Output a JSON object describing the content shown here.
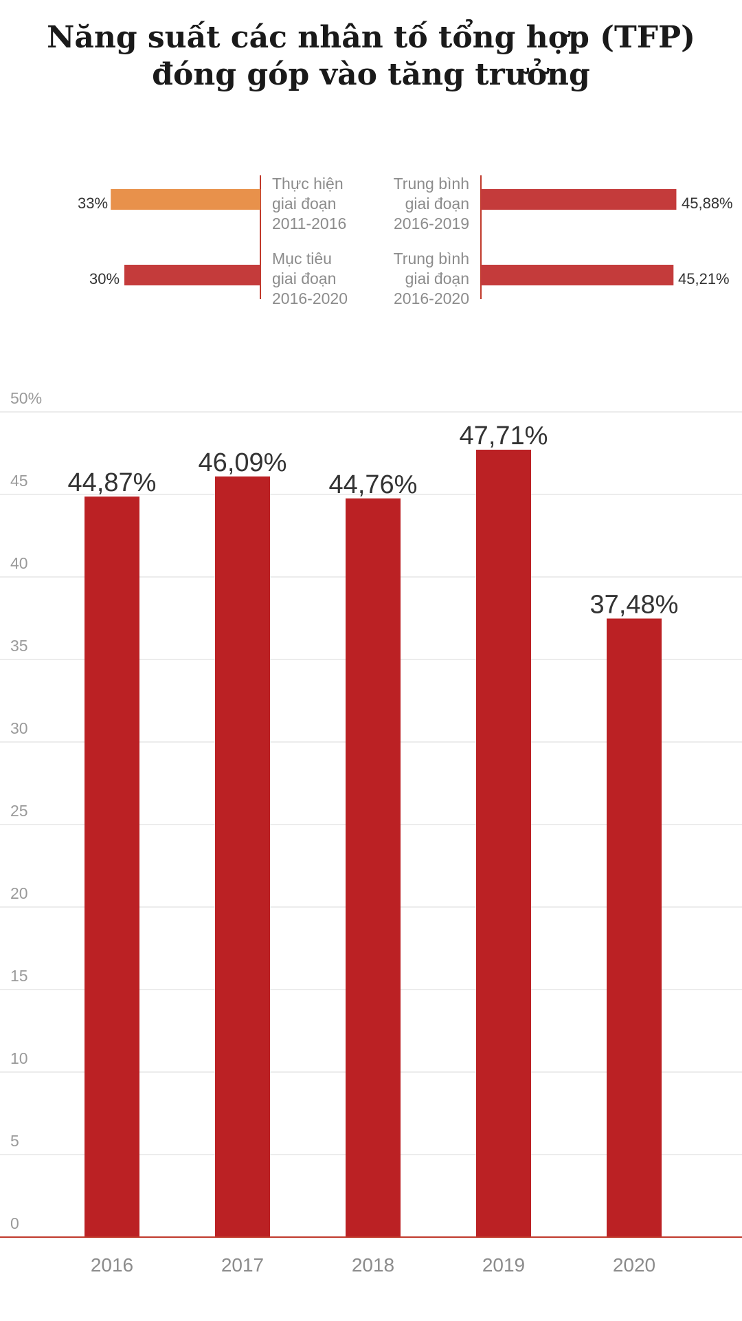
{
  "title": {
    "line1": "Năng suất các nhân tố tổng hợp (TFP)",
    "line2": "đóng góp vào tăng trưởng"
  },
  "comparison": {
    "left_color": "#e8914b",
    "bar_color": "#c43b3b",
    "rows": [
      {
        "left": {
          "label": [
            "Thực hiện",
            "giai đoạn",
            "2011-2016"
          ],
          "value_text": "33%",
          "value": 33,
          "color": "#e8914b"
        },
        "right": {
          "label": [
            "Trung bình",
            "giai đoạn",
            "2016-2019"
          ],
          "value_text": "45,88%",
          "value": 45.88,
          "color": "#c43b3b"
        }
      },
      {
        "left": {
          "label": [
            "Mục tiêu",
            "giai đoạn",
            "2016-2020"
          ],
          "value_text": "30%",
          "value": 30,
          "color": "#c43b3b"
        },
        "right": {
          "label": [
            "Trung bình",
            "giai đoạn",
            "2016-2020"
          ],
          "value_text": "45,21%",
          "value": 45.21,
          "color": "#c43b3b"
        }
      }
    ]
  },
  "chart_data": {
    "type": "bar",
    "categories": [
      "2016",
      "2017",
      "2018",
      "2019",
      "2020"
    ],
    "values": [
      44.87,
      46.09,
      44.76,
      47.71,
      37.48
    ],
    "data_labels": [
      "44,87%",
      "46,09%",
      "44,76%",
      "47,71%",
      "37,48%"
    ],
    "y_ticks": [
      "0",
      "5",
      "10",
      "15",
      "20",
      "25",
      "30",
      "35",
      "40",
      "45",
      "50%"
    ],
    "ylim": [
      0,
      50
    ],
    "grid": true,
    "bar_color": "#bb2124",
    "axis_color": "#c0392b"
  }
}
